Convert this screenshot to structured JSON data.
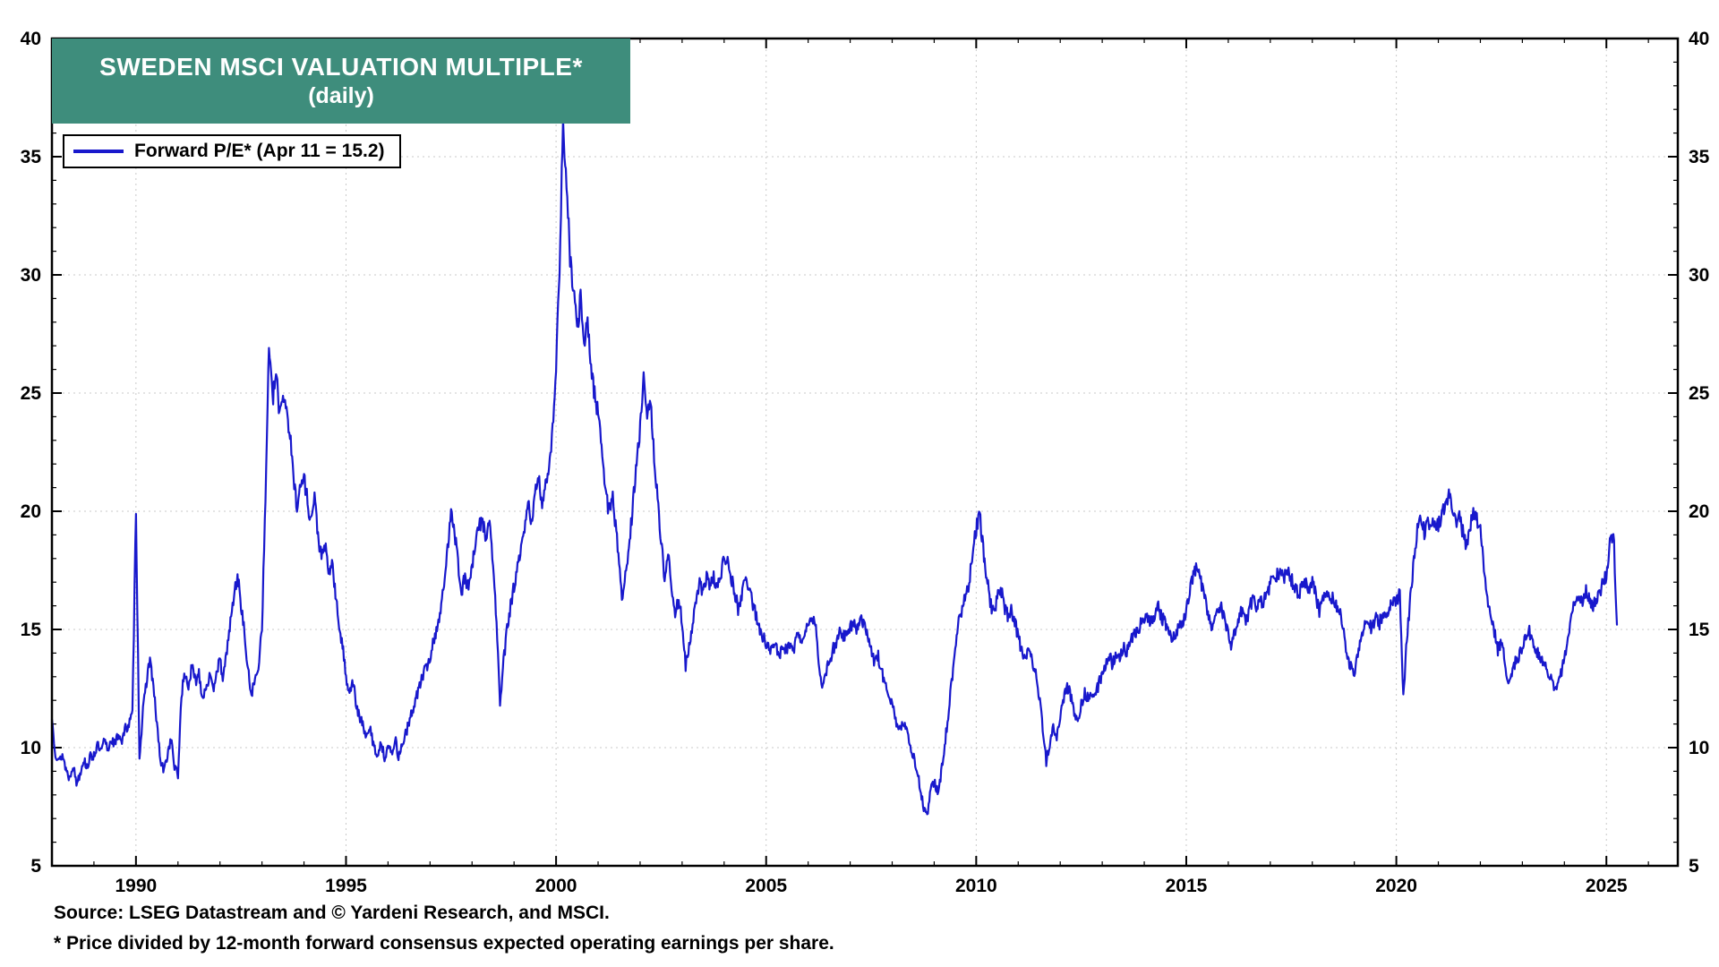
{
  "header": {
    "title": "SWEDEN MSCI VALUATION MULTIPLE*",
    "subtitle": "(daily)",
    "title_bg": "#3e8d7c"
  },
  "legend": {
    "label": "Forward P/E* (Apr 11 = 15.2)"
  },
  "footer": {
    "source": "Source: LSEG Datastream and © Yardeni Research, and MSCI.",
    "footnote": "* Price divided by 12-month forward consensus expected operating earnings per share."
  },
  "chart_data": {
    "type": "line",
    "title": "SWEDEN MSCI VALUATION MULTIPLE* (daily)",
    "series_name": "Forward P/E",
    "latest_point": {
      "date": "Apr 11",
      "value": 15.2
    },
    "line_color": "#1818cc",
    "grid": true,
    "x_axis": {
      "min": 1988,
      "max": 2026.7,
      "tick_labels": [
        1990,
        1995,
        2000,
        2005,
        2010,
        2015,
        2020,
        2025
      ],
      "minor_step": 1
    },
    "y_axis": {
      "min": 5,
      "max": 40,
      "tick_labels": [
        5,
        10,
        15,
        20,
        25,
        30,
        35,
        40
      ],
      "minor_step": 1
    },
    "series": {
      "start_year": 1988,
      "frequency": "monthly",
      "values": [
        11.2,
        9.8,
        9.4,
        9.7,
        9.1,
        8.7,
        9.3,
        8.5,
        8.9,
        9.5,
        9.2,
        9.6,
        9.7,
        10.1,
        9.8,
        10.3,
        9.9,
        10.4,
        10.1,
        10.6,
        10.3,
        10.8,
        11.0,
        11.4,
        20.2,
        9.6,
        11.5,
        12.8,
        13.8,
        12.5,
        11.0,
        9.4,
        9.0,
        9.7,
        10.4,
        9.2,
        8.8,
        12.3,
        13.1,
        12.6,
        13.4,
        12.8,
        13.2,
        12.1,
        12.6,
        13.0,
        12.4,
        13.3,
        13.6,
        12.9,
        14.2,
        15.3,
        16.4,
        17.3,
        16.1,
        14.8,
        13.2,
        12.3,
        12.8,
        13.5,
        15.2,
        20.5,
        27.2,
        24.6,
        25.8,
        24.2,
        25.0,
        24.4,
        23.2,
        21.4,
        20.3,
        21.0,
        21.5,
        20.4,
        19.6,
        20.6,
        19.0,
        18.0,
        18.6,
        17.3,
        17.9,
        16.4,
        15.2,
        14.3,
        13.0,
        12.4,
        12.8,
        11.7,
        11.2,
        10.9,
        10.4,
        10.8,
        10.0,
        9.7,
        10.2,
        9.6,
        10.1,
        9.7,
        10.4,
        9.6,
        10.1,
        10.6,
        11.0,
        11.6,
        12.1,
        12.6,
        13.1,
        13.4,
        13.8,
        14.5,
        15.1,
        15.8,
        16.8,
        18.4,
        20.2,
        19.2,
        17.8,
        16.6,
        17.2,
        16.8,
        17.6,
        18.6,
        19.4,
        19.6,
        18.9,
        19.5,
        17.8,
        15.2,
        11.9,
        13.6,
        15.0,
        16.0,
        16.8,
        17.6,
        18.3,
        19.2,
        20.3,
        19.6,
        20.7,
        21.3,
        20.4,
        21.1,
        22.0,
        23.5,
        26.0,
        30.5,
        36.5,
        33.5,
        30.8,
        29.3,
        27.6,
        29.1,
        26.8,
        28.2,
        26.0,
        25.0,
        24.2,
        22.8,
        21.2,
        19.8,
        20.8,
        19.4,
        17.8,
        16.2,
        17.5,
        18.8,
        20.4,
        22.0,
        23.4,
        26.1,
        23.8,
        24.6,
        22.4,
        20.4,
        18.8,
        17.2,
        18.2,
        16.6,
        15.8,
        16.2,
        15.4,
        13.4,
        14.2,
        15.2,
        16.2,
        17.0,
        16.4,
        17.4,
        16.8,
        17.2,
        16.6,
        17.4,
        17.9,
        18.2,
        17.2,
        16.6,
        15.9,
        16.4,
        17.2,
        16.9,
        16.2,
        15.6,
        15.0,
        14.7,
        14.4,
        14.1,
        14.6,
        14.2,
        13.9,
        14.3,
        14.0,
        14.6,
        14.2,
        14.7,
        14.4,
        14.9,
        15.1,
        15.6,
        15.2,
        13.8,
        12.4,
        13.1,
        13.6,
        14.1,
        14.5,
        14.9,
        14.6,
        15.0,
        15.1,
        15.4,
        15.0,
        15.5,
        15.2,
        14.8,
        14.2,
        13.6,
        13.9,
        13.2,
        12.8,
        12.3,
        11.8,
        11.1,
        10.6,
        11.1,
        10.9,
        10.2,
        9.7,
        9.1,
        8.3,
        7.4,
        7.1,
        8.2,
        8.6,
        8.1,
        8.9,
        10.1,
        11.4,
        12.8,
        14.2,
        15.3,
        15.9,
        16.4,
        17.0,
        18.2,
        19.3,
        19.8,
        18.4,
        17.2,
        16.2,
        15.6,
        16.3,
        16.8,
        16.0,
        15.6,
        15.9,
        15.3,
        14.7,
        14.1,
        13.8,
        14.3,
        13.7,
        13.1,
        12.2,
        10.8,
        9.4,
        10.2,
        10.8,
        10.4,
        11.2,
        12.1,
        12.6,
        12.2,
        11.5,
        11.1,
        11.8,
        12.3,
        12.1,
        12.4,
        12.2,
        12.7,
        13.1,
        13.6,
        13.9,
        13.5,
        14.1,
        13.8,
        14.3,
        14.0,
        14.5,
        14.7,
        15.0,
        15.2,
        15.3,
        15.6,
        15.3,
        15.7,
        15.9,
        15.5,
        15.3,
        15.0,
        14.6,
        14.9,
        15.2,
        15.4,
        15.8,
        16.6,
        17.4,
        17.5,
        17.1,
        16.6,
        15.7,
        15.1,
        15.5,
        15.8,
        16.0,
        15.4,
        14.9,
        14.3,
        15.0,
        15.5,
        15.8,
        15.2,
        15.9,
        16.3,
        16.0,
        16.4,
        16.1,
        16.6,
        16.9,
        17.1,
        17.3,
        17.5,
        17.2,
        17.4,
        17.1,
        16.8,
        16.5,
        16.8,
        17.0,
        16.7,
        17.0,
        16.4,
        15.8,
        16.2,
        16.5,
        16.1,
        16.4,
        15.9,
        15.6,
        14.8,
        13.9,
        13.4,
        13.2,
        14.1,
        14.8,
        15.3,
        15.5,
        15.0,
        15.5,
        15.2,
        15.6,
        15.4,
        15.9,
        16.1,
        16.3,
        16.5,
        12.2,
        14.6,
        16.4,
        17.8,
        19.2,
        19.6,
        19.1,
        19.5,
        19.2,
        19.6,
        19.4,
        19.8,
        20.3,
        20.8,
        19.9,
        19.4,
        19.7,
        19.1,
        18.6,
        19.3,
        19.9,
        19.6,
        19.4,
        17.6,
        16.2,
        15.6,
        14.9,
        14.1,
        14.6,
        13.7,
        12.7,
        13.1,
        13.6,
        13.9,
        14.2,
        14.7,
        14.9,
        14.5,
        14.1,
        13.8,
        13.6,
        13.3,
        12.9,
        12.6,
        12.5,
        13.1,
        13.7,
        14.6,
        15.4,
        16.2,
        16.5,
        16.1,
        16.7,
        16.4,
        16.0,
        16.3,
        16.6,
        16.9,
        17.3,
        18.6,
        19.3,
        15.2
      ]
    }
  }
}
